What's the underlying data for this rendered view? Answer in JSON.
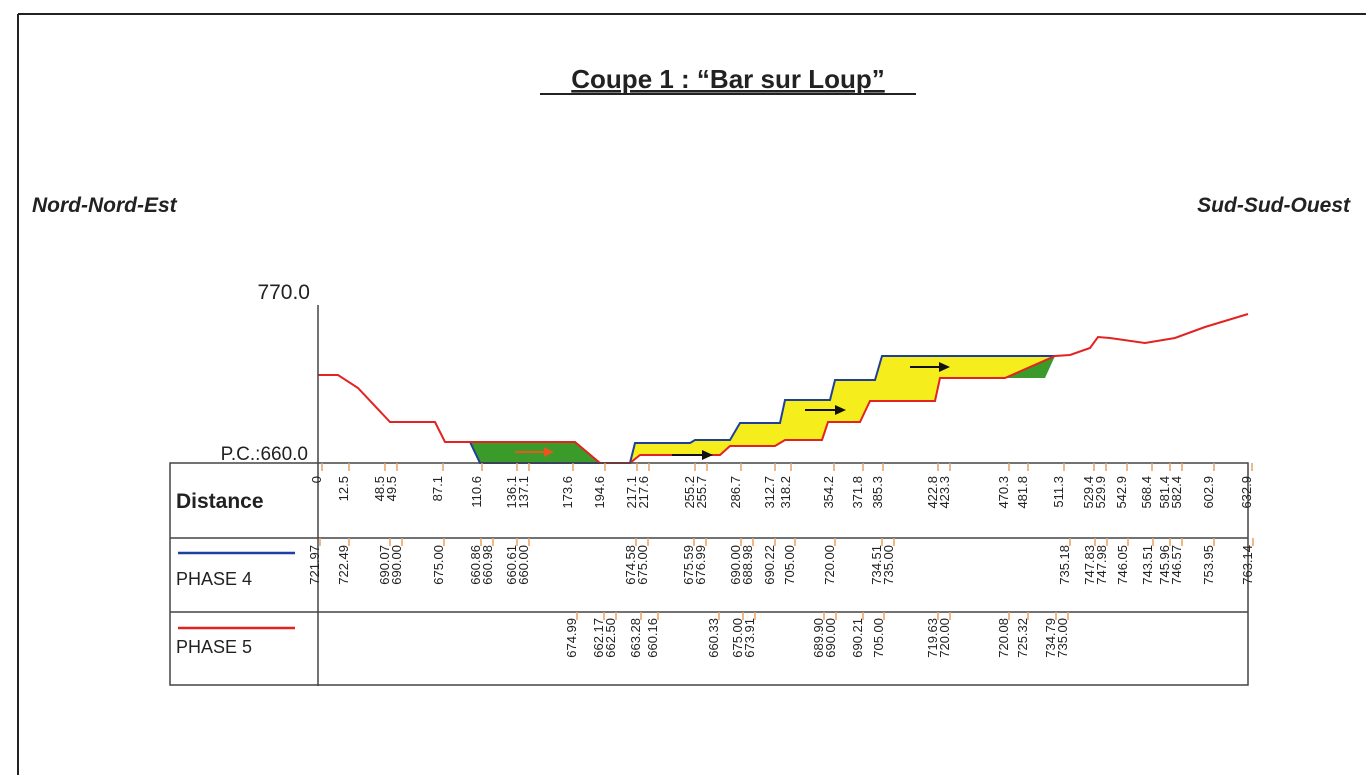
{
  "title": "Coupe 1 : “Bar sur Loup”",
  "left_label": "Nord-Nord-Est",
  "right_label": "Sud-Sud-Ouest",
  "axis_top": "770.0",
  "axis_base": "P.C.:660.0",
  "table": {
    "rows": [
      {
        "name": "Distance",
        "values": [
          "0",
          "12.5",
          "48.5",
          "49.5",
          "87.1",
          "110.6",
          "136.1",
          "137.1",
          "173.6",
          "194.6",
          "217.1",
          "217.6",
          "255.2",
          "255.7",
          "286.7",
          "312.7",
          "318.2",
          "354.2",
          "371.8",
          "385.3",
          "422.8",
          "423.3",
          "470.3",
          "481.8",
          "511.3",
          "529.4",
          "529.9",
          "542.9",
          "568.4",
          "581.4",
          "582.4",
          "602.9",
          "632.9"
        ]
      },
      {
        "name": "PHASE 4",
        "values": [
          "721.97",
          "722.49",
          "690.07",
          "690.00",
          "675.00",
          "660.86",
          "660.98",
          "660.61",
          "660.00",
          "674.58",
          "675.00",
          "675.59",
          "676.99",
          "690.00",
          "688.98",
          "690.22",
          "705.00",
          "720.00",
          "734.51",
          "735.00",
          "735.18",
          "747.83",
          "747.98",
          "746.05",
          "743.51",
          "745.96",
          "746.57",
          "753.95",
          "763.14"
        ]
      },
      {
        "name": "PHASE 5",
        "values": [
          "674.99",
          "662.17",
          "662.50",
          "663.28",
          "660.16",
          "660.33",
          "675.00",
          "673.91",
          "689.90",
          "690.00",
          "690.21",
          "705.00",
          "719.63",
          "720.00",
          "720.08",
          "725.32",
          "734.79",
          "735.00"
        ]
      }
    ]
  }
}
